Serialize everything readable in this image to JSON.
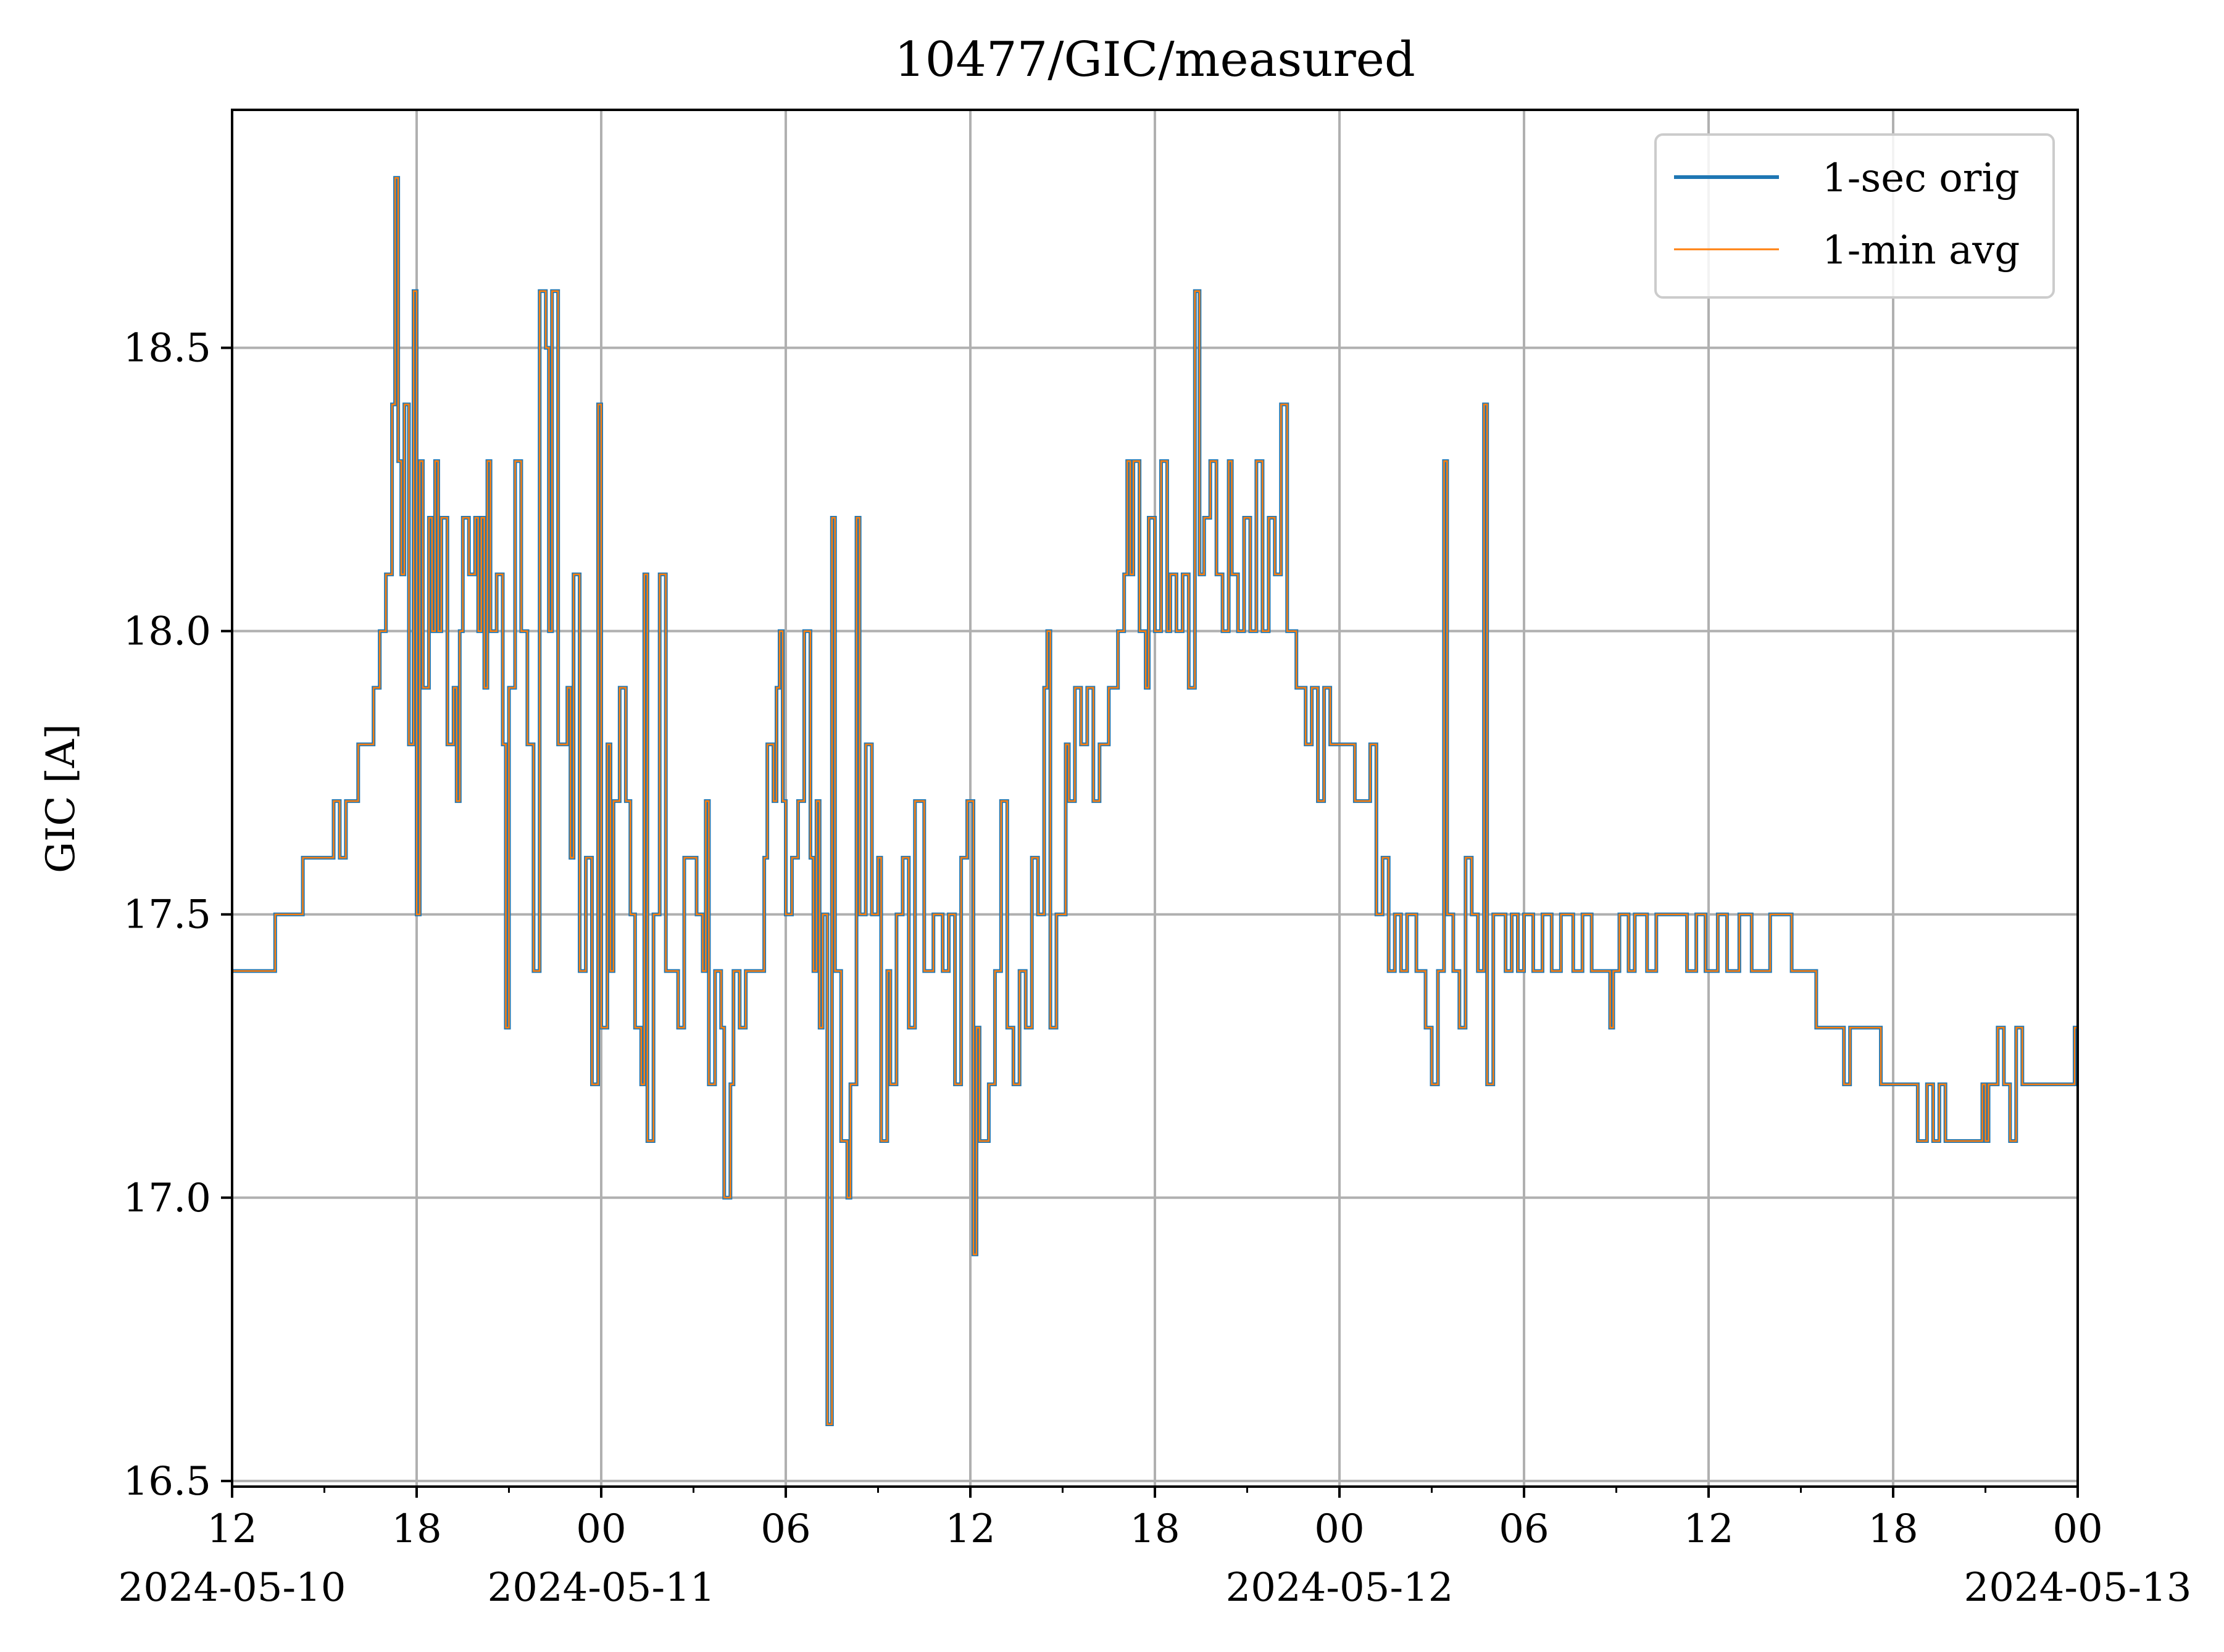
{
  "chart_data": {
    "type": "line",
    "title": "10477/GIC/measured",
    "xlabel": "",
    "ylabel": "GIC [A]",
    "x_unit": "hours since 2024-05-10 00:00",
    "xlim": [
      12,
      72
    ],
    "ylim": [
      16.49,
      18.92
    ],
    "grid": true,
    "legend_position": "top-right",
    "colors": {
      "orig": "#1f77b4",
      "avg": "#ff7f0e",
      "grid": "#b0b0b0"
    },
    "x_ticks": [
      {
        "x": 12,
        "label": "12",
        "date": "2024-05-10"
      },
      {
        "x": 18,
        "label": "18",
        "date": ""
      },
      {
        "x": 24,
        "label": "00",
        "date": "2024-05-11"
      },
      {
        "x": 30,
        "label": "06",
        "date": ""
      },
      {
        "x": 36,
        "label": "12",
        "date": ""
      },
      {
        "x": 42,
        "label": "18",
        "date": ""
      },
      {
        "x": 48,
        "label": "00",
        "date": "2024-05-12"
      },
      {
        "x": 54,
        "label": "06",
        "date": ""
      },
      {
        "x": 60,
        "label": "12",
        "date": ""
      },
      {
        "x": 66,
        "label": "18",
        "date": ""
      },
      {
        "x": 72,
        "label": "00",
        "date": "2024-05-13"
      }
    ],
    "y_ticks": [
      {
        "y": 16.5,
        "label": "16.5"
      },
      {
        "y": 17.0,
        "label": "17.0"
      },
      {
        "y": 17.5,
        "label": "17.5"
      },
      {
        "y": 18.0,
        "label": "18.0"
      },
      {
        "y": 18.5,
        "label": "18.5"
      }
    ],
    "series": [
      {
        "name": "1-sec orig",
        "key": "orig"
      },
      {
        "name": "1-min avg",
        "key": "avg"
      }
    ],
    "step_points": [
      [
        12.0,
        17.4
      ],
      [
        13.4,
        17.5
      ],
      [
        14.3,
        17.6
      ],
      [
        15.3,
        17.7
      ],
      [
        15.5,
        17.6
      ],
      [
        15.7,
        17.7
      ],
      [
        16.1,
        17.8
      ],
      [
        16.6,
        17.9
      ],
      [
        16.8,
        18.0
      ],
      [
        17.0,
        18.1
      ],
      [
        17.2,
        18.4
      ],
      [
        17.3,
        18.8
      ],
      [
        17.4,
        18.3
      ],
      [
        17.5,
        18.1
      ],
      [
        17.6,
        18.4
      ],
      [
        17.75,
        17.8
      ],
      [
        17.9,
        18.6
      ],
      [
        18.0,
        17.5
      ],
      [
        18.1,
        18.3
      ],
      [
        18.2,
        17.9
      ],
      [
        18.4,
        18.2
      ],
      [
        18.5,
        18.0
      ],
      [
        18.6,
        18.3
      ],
      [
        18.7,
        18.0
      ],
      [
        18.8,
        18.2
      ],
      [
        19.0,
        17.8
      ],
      [
        19.2,
        17.9
      ],
      [
        19.3,
        17.7
      ],
      [
        19.4,
        18.0
      ],
      [
        19.5,
        18.2
      ],
      [
        19.7,
        18.1
      ],
      [
        19.9,
        18.2
      ],
      [
        20.0,
        18.0
      ],
      [
        20.1,
        18.2
      ],
      [
        20.2,
        17.9
      ],
      [
        20.3,
        18.3
      ],
      [
        20.4,
        18.0
      ],
      [
        20.6,
        18.1
      ],
      [
        20.8,
        17.8
      ],
      [
        20.9,
        17.3
      ],
      [
        21.0,
        17.9
      ],
      [
        21.2,
        18.3
      ],
      [
        21.4,
        18.0
      ],
      [
        21.6,
        17.8
      ],
      [
        21.8,
        17.4
      ],
      [
        22.0,
        18.6
      ],
      [
        22.2,
        18.5
      ],
      [
        22.3,
        18.0
      ],
      [
        22.4,
        18.6
      ],
      [
        22.6,
        17.8
      ],
      [
        22.9,
        17.9
      ],
      [
        23.0,
        17.6
      ],
      [
        23.1,
        18.1
      ],
      [
        23.3,
        17.4
      ],
      [
        23.5,
        17.6
      ],
      [
        23.7,
        17.2
      ],
      [
        23.9,
        18.4
      ],
      [
        24.0,
        17.3
      ],
      [
        24.2,
        17.8
      ],
      [
        24.3,
        17.4
      ],
      [
        24.4,
        17.7
      ],
      [
        24.6,
        17.9
      ],
      [
        24.8,
        17.7
      ],
      [
        24.95,
        17.5
      ],
      [
        25.1,
        17.3
      ],
      [
        25.3,
        17.2
      ],
      [
        25.4,
        18.1
      ],
      [
        25.5,
        17.1
      ],
      [
        25.7,
        17.5
      ],
      [
        25.9,
        18.1
      ],
      [
        26.1,
        17.4
      ],
      [
        26.5,
        17.3
      ],
      [
        26.7,
        17.6
      ],
      [
        27.1,
        17.5
      ],
      [
        27.3,
        17.4
      ],
      [
        27.4,
        17.7
      ],
      [
        27.5,
        17.2
      ],
      [
        27.7,
        17.4
      ],
      [
        27.9,
        17.3
      ],
      [
        28.0,
        17.0
      ],
      [
        28.2,
        17.2
      ],
      [
        28.3,
        17.4
      ],
      [
        28.5,
        17.3
      ],
      [
        28.7,
        17.4
      ],
      [
        29.3,
        17.6
      ],
      [
        29.4,
        17.8
      ],
      [
        29.6,
        17.7
      ],
      [
        29.7,
        17.9
      ],
      [
        29.8,
        18.0
      ],
      [
        29.9,
        17.7
      ],
      [
        30.0,
        17.5
      ],
      [
        30.2,
        17.6
      ],
      [
        30.4,
        17.7
      ],
      [
        30.6,
        18.0
      ],
      [
        30.8,
        17.6
      ],
      [
        30.9,
        17.4
      ],
      [
        31.0,
        17.7
      ],
      [
        31.1,
        17.3
      ],
      [
        31.2,
        17.5
      ],
      [
        31.35,
        16.6
      ],
      [
        31.5,
        18.2
      ],
      [
        31.6,
        17.4
      ],
      [
        31.8,
        17.1
      ],
      [
        32.0,
        17.0
      ],
      [
        32.1,
        17.2
      ],
      [
        32.3,
        18.2
      ],
      [
        32.4,
        17.5
      ],
      [
        32.6,
        17.8
      ],
      [
        32.8,
        17.5
      ],
      [
        33.0,
        17.6
      ],
      [
        33.1,
        17.1
      ],
      [
        33.3,
        17.4
      ],
      [
        33.4,
        17.2
      ],
      [
        33.6,
        17.5
      ],
      [
        33.8,
        17.6
      ],
      [
        34.0,
        17.3
      ],
      [
        34.2,
        17.7
      ],
      [
        34.5,
        17.4
      ],
      [
        34.8,
        17.5
      ],
      [
        35.1,
        17.4
      ],
      [
        35.3,
        17.5
      ],
      [
        35.5,
        17.2
      ],
      [
        35.7,
        17.6
      ],
      [
        35.9,
        17.7
      ],
      [
        36.1,
        16.9
      ],
      [
        36.2,
        17.3
      ],
      [
        36.3,
        17.1
      ],
      [
        36.6,
        17.2
      ],
      [
        36.8,
        17.4
      ],
      [
        37.0,
        17.7
      ],
      [
        37.2,
        17.3
      ],
      [
        37.4,
        17.2
      ],
      [
        37.6,
        17.4
      ],
      [
        37.8,
        17.3
      ],
      [
        38.0,
        17.6
      ],
      [
        38.2,
        17.5
      ],
      [
        38.4,
        17.9
      ],
      [
        38.5,
        18.0
      ],
      [
        38.6,
        17.3
      ],
      [
        38.8,
        17.5
      ],
      [
        39.1,
        17.8
      ],
      [
        39.2,
        17.7
      ],
      [
        39.4,
        17.9
      ],
      [
        39.6,
        17.8
      ],
      [
        39.8,
        17.9
      ],
      [
        40.0,
        17.7
      ],
      [
        40.2,
        17.8
      ],
      [
        40.5,
        17.9
      ],
      [
        40.8,
        18.0
      ],
      [
        41.0,
        18.1
      ],
      [
        41.1,
        18.3
      ],
      [
        41.2,
        18.1
      ],
      [
        41.3,
        18.3
      ],
      [
        41.5,
        18.0
      ],
      [
        41.7,
        17.9
      ],
      [
        41.8,
        18.2
      ],
      [
        42.0,
        18.0
      ],
      [
        42.2,
        18.3
      ],
      [
        42.4,
        18.0
      ],
      [
        42.5,
        18.1
      ],
      [
        42.7,
        18.0
      ],
      [
        42.9,
        18.1
      ],
      [
        43.1,
        17.9
      ],
      [
        43.3,
        18.6
      ],
      [
        43.45,
        18.1
      ],
      [
        43.6,
        18.2
      ],
      [
        43.8,
        18.3
      ],
      [
        44.0,
        18.1
      ],
      [
        44.2,
        18.0
      ],
      [
        44.4,
        18.3
      ],
      [
        44.5,
        18.1
      ],
      [
        44.7,
        18.0
      ],
      [
        44.9,
        18.2
      ],
      [
        45.1,
        18.0
      ],
      [
        45.3,
        18.3
      ],
      [
        45.5,
        18.0
      ],
      [
        45.7,
        18.2
      ],
      [
        45.9,
        18.1
      ],
      [
        46.1,
        18.4
      ],
      [
        46.3,
        18.0
      ],
      [
        46.6,
        17.9
      ],
      [
        46.9,
        17.8
      ],
      [
        47.1,
        17.9
      ],
      [
        47.3,
        17.7
      ],
      [
        47.5,
        17.9
      ],
      [
        47.7,
        17.8
      ],
      [
        48.0,
        17.8
      ],
      [
        48.5,
        17.7
      ],
      [
        49.0,
        17.8
      ],
      [
        49.2,
        17.5
      ],
      [
        49.4,
        17.6
      ],
      [
        49.6,
        17.4
      ],
      [
        49.8,
        17.5
      ],
      [
        50.0,
        17.4
      ],
      [
        50.2,
        17.5
      ],
      [
        50.5,
        17.4
      ],
      [
        50.8,
        17.3
      ],
      [
        51.0,
        17.2
      ],
      [
        51.2,
        17.4
      ],
      [
        51.4,
        18.3
      ],
      [
        51.5,
        17.5
      ],
      [
        51.7,
        17.4
      ],
      [
        51.9,
        17.3
      ],
      [
        52.1,
        17.6
      ],
      [
        52.3,
        17.5
      ],
      [
        52.5,
        17.4
      ],
      [
        52.7,
        18.4
      ],
      [
        52.8,
        17.2
      ],
      [
        53.0,
        17.5
      ],
      [
        53.4,
        17.4
      ],
      [
        53.6,
        17.5
      ],
      [
        53.8,
        17.4
      ],
      [
        54.0,
        17.5
      ],
      [
        54.3,
        17.4
      ],
      [
        54.6,
        17.5
      ],
      [
        54.9,
        17.4
      ],
      [
        55.2,
        17.5
      ],
      [
        55.6,
        17.4
      ],
      [
        55.9,
        17.5
      ],
      [
        56.2,
        17.4
      ],
      [
        56.8,
        17.3
      ],
      [
        56.9,
        17.4
      ],
      [
        57.1,
        17.5
      ],
      [
        57.4,
        17.4
      ],
      [
        57.6,
        17.5
      ],
      [
        58.0,
        17.4
      ],
      [
        58.3,
        17.5
      ],
      [
        58.9,
        17.5
      ],
      [
        59.3,
        17.4
      ],
      [
        59.6,
        17.5
      ],
      [
        59.9,
        17.4
      ],
      [
        60.3,
        17.5
      ],
      [
        60.6,
        17.4
      ],
      [
        61.0,
        17.5
      ],
      [
        61.4,
        17.4
      ],
      [
        62.0,
        17.5
      ],
      [
        62.7,
        17.4
      ],
      [
        63.1,
        17.4
      ],
      [
        63.5,
        17.3
      ],
      [
        64.0,
        17.3
      ],
      [
        64.4,
        17.2
      ],
      [
        64.6,
        17.3
      ],
      [
        65.0,
        17.3
      ],
      [
        65.6,
        17.2
      ],
      [
        66.3,
        17.2
      ],
      [
        66.8,
        17.1
      ],
      [
        67.1,
        17.2
      ],
      [
        67.3,
        17.1
      ],
      [
        67.5,
        17.2
      ],
      [
        67.7,
        17.1
      ],
      [
        68.2,
        17.1
      ],
      [
        68.9,
        17.2
      ],
      [
        69.0,
        17.1
      ],
      [
        69.1,
        17.2
      ],
      [
        69.4,
        17.3
      ],
      [
        69.6,
        17.2
      ],
      [
        69.8,
        17.1
      ],
      [
        70.0,
        17.3
      ],
      [
        70.2,
        17.2
      ],
      [
        70.6,
        17.2
      ],
      [
        71.3,
        17.2
      ],
      [
        71.9,
        17.3
      ],
      [
        72.0,
        17.3
      ]
    ]
  }
}
